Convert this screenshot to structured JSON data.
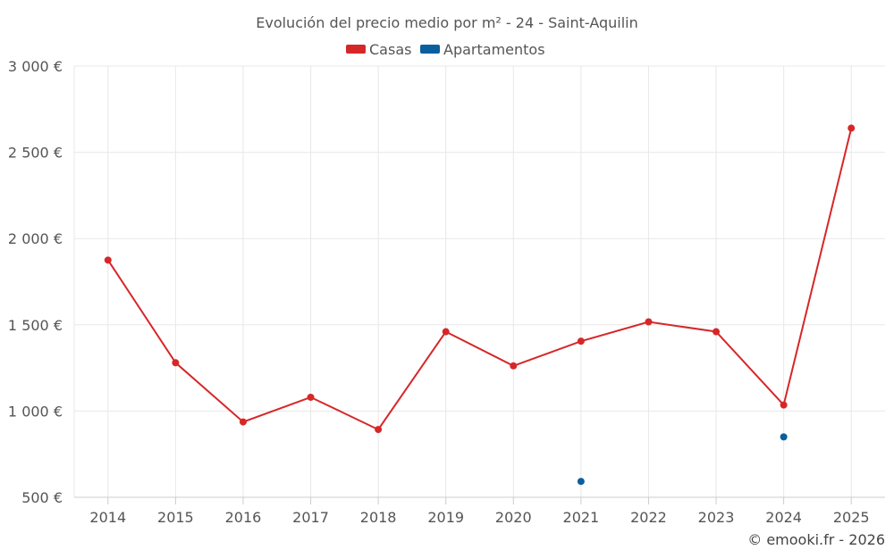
{
  "chart_data": {
    "type": "line",
    "title": "Evolución del precio medio por m² - 24 - Saint-Aquilin",
    "categories": [
      "2014",
      "2015",
      "2016",
      "2017",
      "2018",
      "2019",
      "2020",
      "2021",
      "2022",
      "2023",
      "2024",
      "2025"
    ],
    "series": [
      {
        "name": "Casas",
        "color": "#d62728",
        "values": [
          1875,
          1280,
          937,
          1080,
          893,
          1460,
          1262,
          1405,
          1517,
          1460,
          1035,
          2640
        ]
      },
      {
        "name": "Apartamentos",
        "color": "#0a5f9e",
        "values": [
          null,
          null,
          null,
          null,
          null,
          null,
          null,
          592,
          null,
          null,
          850,
          null
        ]
      }
    ],
    "y_ticks": [
      500,
      1000,
      1500,
      2000,
      2500,
      3000
    ],
    "y_tick_labels": [
      "500 €",
      "1 000 €",
      "1 500 €",
      "2 000 €",
      "2 500 €",
      "3 000 €"
    ],
    "ylim": [
      500,
      3000
    ],
    "xlabel": "",
    "ylabel": "",
    "legend_position": "top-center",
    "grid": true
  },
  "credit": "© emooki.fr - 2026"
}
